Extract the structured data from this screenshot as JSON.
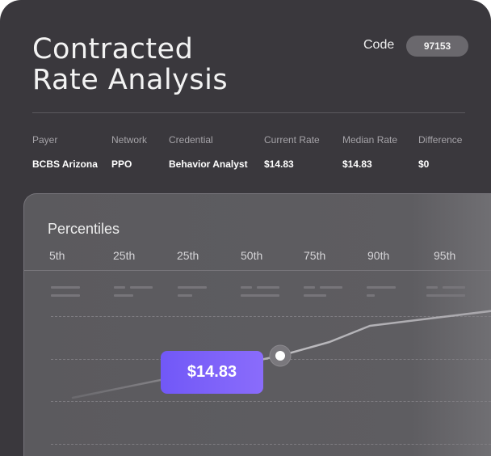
{
  "header": {
    "title_line1": "Contracted",
    "title_line2": "Rate Analysis",
    "code_label": "Code",
    "code_value": "97153"
  },
  "table": {
    "headers": [
      "Payer",
      "Network",
      "Credential",
      "Current Rate",
      "Median Rate",
      "Difference"
    ],
    "row": [
      "BCBS Arizona",
      "PPO",
      "Behavior Analyst",
      "$14.83",
      "$14.83",
      "$0"
    ]
  },
  "percentiles": {
    "title": "Percentiles",
    "labels": [
      "5th",
      "25th",
      "25th",
      "50th",
      "75th",
      "90th",
      "95th"
    ]
  },
  "callout": {
    "value": "$14.83"
  },
  "colors": {
    "background": "#3a383d",
    "accent": "#7c62fa",
    "pill": "#6a686d"
  }
}
